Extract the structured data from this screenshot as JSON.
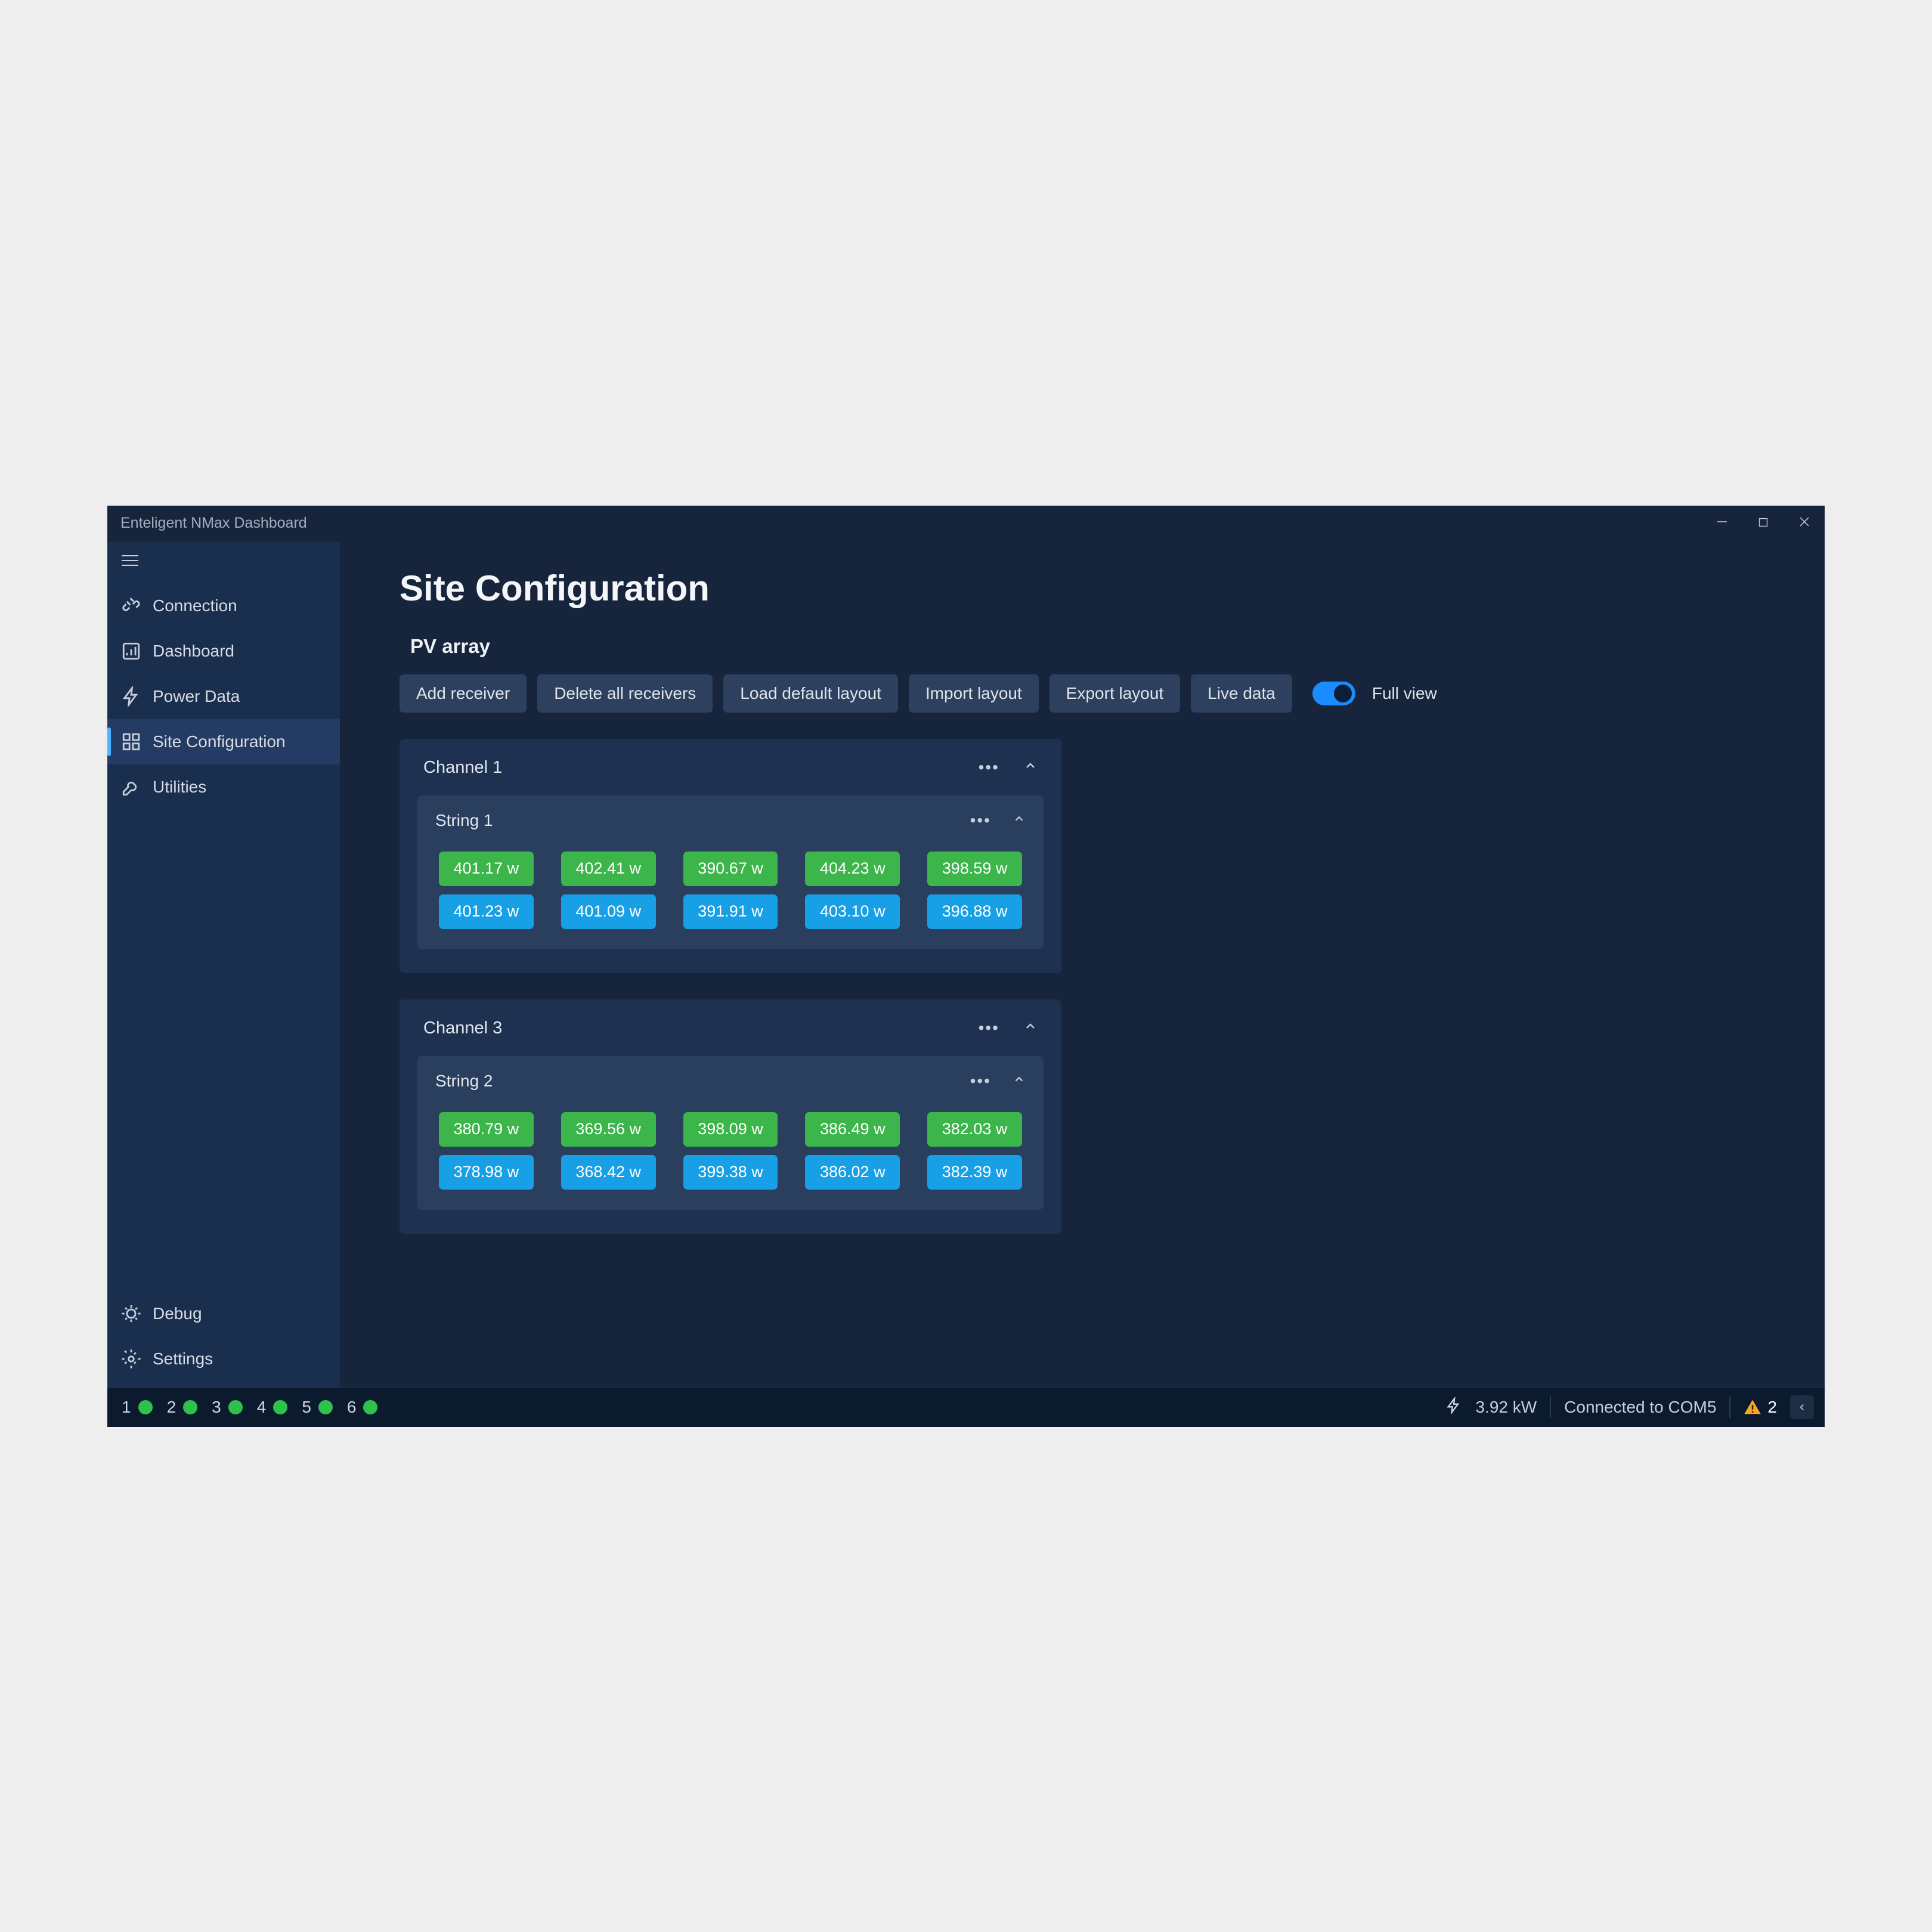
{
  "window": {
    "title": "Enteligent NMax Dashboard"
  },
  "sidebar": {
    "items": [
      {
        "label": "Connection",
        "icon": "plug"
      },
      {
        "label": "Dashboard",
        "icon": "chart"
      },
      {
        "label": "Power Data",
        "icon": "bolt"
      },
      {
        "label": "Site Configuration",
        "icon": "layout",
        "active": true
      },
      {
        "label": "Utilities",
        "icon": "wrench"
      }
    ],
    "bottom": [
      {
        "label": "Debug",
        "icon": "bug"
      },
      {
        "label": "Settings",
        "icon": "gear"
      }
    ]
  },
  "page": {
    "title": "Site Configuration",
    "section": "PV array",
    "toolbar": {
      "add_receiver": "Add receiver",
      "delete_all": "Delete all receivers",
      "load_default": "Load default layout",
      "import_layout": "Import layout",
      "export_layout": "Export layout",
      "live_data": "Live data",
      "full_view": "Full view",
      "full_view_on": true
    },
    "channels": [
      {
        "name": "Channel 1",
        "strings": [
          {
            "name": "String 1",
            "rows": [
              [
                {
                  "v": "401.17 w",
                  "c": "green"
                },
                {
                  "v": "402.41 w",
                  "c": "green"
                },
                {
                  "v": "390.67 w",
                  "c": "green"
                },
                {
                  "v": "404.23 w",
                  "c": "green"
                },
                {
                  "v": "398.59 w",
                  "c": "green"
                }
              ],
              [
                {
                  "v": "401.23 w",
                  "c": "blue"
                },
                {
                  "v": "401.09 w",
                  "c": "blue"
                },
                {
                  "v": "391.91 w",
                  "c": "blue"
                },
                {
                  "v": "403.10 w",
                  "c": "blue"
                },
                {
                  "v": "396.88 w",
                  "c": "blue"
                }
              ]
            ]
          }
        ]
      },
      {
        "name": "Channel 3",
        "strings": [
          {
            "name": "String 2",
            "rows": [
              [
                {
                  "v": "380.79 w",
                  "c": "green"
                },
                {
                  "v": "369.56 w",
                  "c": "green"
                },
                {
                  "v": "398.09 w",
                  "c": "green"
                },
                {
                  "v": "386.49 w",
                  "c": "green"
                },
                {
                  "v": "382.03 w",
                  "c": "green"
                }
              ],
              [
                {
                  "v": "378.98 w",
                  "c": "blue"
                },
                {
                  "v": "368.42 w",
                  "c": "blue"
                },
                {
                  "v": "399.38 w",
                  "c": "blue"
                },
                {
                  "v": "386.02 w",
                  "c": "blue"
                },
                {
                  "v": "382.39 w",
                  "c": "blue"
                }
              ]
            ]
          }
        ]
      }
    ]
  },
  "status": {
    "indicators": [
      "1",
      "2",
      "3",
      "4",
      "5",
      "6"
    ],
    "power": "3.92 kW",
    "connection": "Connected to COM5",
    "warning_count": "2"
  },
  "colors": {
    "window_bg": "#16253c",
    "sidebar_bg": "#1a2e4d",
    "sidebar_active_bg": "#243c63",
    "accent": "#4fb4ff",
    "card_bg": "#1e3150",
    "string_bg": "#2a3e5e",
    "button_bg": "#2d415f",
    "toggle_on": "#1a8cff",
    "module_green": "#3cb54a",
    "module_blue": "#18a0e6",
    "statusbar_bg": "#0c1a2e",
    "status_dot": "#2fc24b",
    "text_primary": "#f4f6f9",
    "text_secondary": "#c8ced9"
  }
}
